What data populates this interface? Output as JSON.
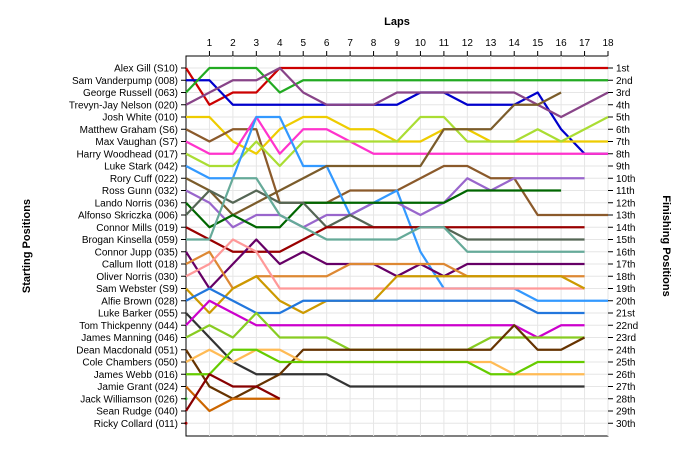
{
  "chart_data": {
    "type": "line",
    "xlabel": "Laps",
    "ylabel_left": "Starting Positions",
    "ylabel_right": "Finishing Positions",
    "laps": [
      1,
      2,
      3,
      4,
      5,
      6,
      7,
      8,
      9,
      10,
      11,
      12,
      13,
      14,
      15,
      16,
      17,
      18
    ],
    "finishing_labels": [
      "1st",
      "2nd",
      "3rd",
      "4th",
      "5th",
      "6th",
      "7th",
      "8th",
      "9th",
      "10th",
      "11th",
      "12th",
      "13th",
      "14th",
      "15th",
      "16th",
      "17th",
      "18th",
      "19th",
      "20th",
      "21st",
      "22nd",
      "23rd",
      "24th",
      "25th",
      "26th",
      "27th",
      "28th",
      "29th",
      "30th"
    ],
    "drivers": [
      "Alex Gill (S10)",
      "Sam Vanderpump (008)",
      "George Russell (063)",
      "Trevyn-Jay Nelson (020)",
      "Josh White (010)",
      "Matthew Graham (S6)",
      "Max Vaughan (S7)",
      "Harry Woodhead (017)",
      "Luke Stark (042)",
      "Rory Cuff (022)",
      "Ross Gunn (032)",
      "Lando Norris (036)",
      "Alfonso Skriczka (006)",
      "Connor Mills (019)",
      "Brogan Kinsella (059)",
      "Connor Jupp (035)",
      "Callum Ilott (018)",
      "Oliver Norris (030)",
      "Sam Webster (S9)",
      "Alfie Brown (028)",
      "Luke Barker (055)",
      "Tom Thickpenny (044)",
      "James Manning (046)",
      "Dean Macdonald (051)",
      "Cole Chambers (050)",
      "James Webb (016)",
      "Jamie Grant (024)",
      "Jack Williamson (026)",
      "Sean Rudge (040)",
      "Ricky Collard (011)"
    ],
    "series": [
      {
        "color": "#cc0000",
        "positions": [
          1,
          4,
          3,
          3,
          1,
          1,
          1,
          1,
          1,
          1,
          1,
          1,
          1,
          1,
          1,
          1,
          1,
          1,
          1
        ]
      },
      {
        "color": "#0000cc",
        "positions": [
          2,
          2,
          4,
          4,
          4,
          4,
          4,
          4,
          4,
          4,
          3,
          3,
          4,
          4,
          4,
          3,
          6,
          8,
          8
        ]
      },
      {
        "color": "#22aa22",
        "positions": [
          3,
          1,
          1,
          1,
          3,
          2,
          2,
          2,
          2,
          2,
          2,
          2,
          2,
          2,
          2,
          2,
          2,
          2,
          2
        ]
      },
      {
        "color": "#884488",
        "positions": [
          4,
          3,
          2,
          2,
          1,
          3,
          4,
          4,
          4,
          3,
          3,
          3,
          3,
          3,
          3,
          4,
          5,
          4,
          3
        ]
      },
      {
        "color": "#eecc00",
        "positions": [
          5,
          5,
          7,
          8,
          6,
          5,
          5,
          6,
          6,
          7,
          7,
          6,
          6,
          7,
          7,
          7,
          7,
          7,
          7
        ]
      },
      {
        "color": "#8b5a2b",
        "positions": [
          6,
          7,
          6,
          6,
          12,
          12,
          12,
          11,
          11,
          11,
          10,
          9,
          9,
          10,
          10,
          13,
          13,
          13,
          13
        ]
      },
      {
        "color": "#ff33cc",
        "positions": [
          7,
          8,
          8,
          5,
          8,
          6,
          6,
          7,
          8,
          8,
          8,
          8,
          8,
          8,
          8,
          8,
          8,
          8,
          8
        ]
      },
      {
        "color": "#aadd33",
        "positions": [
          8,
          9,
          9,
          7,
          9,
          7,
          7,
          7,
          7,
          7,
          5,
          5,
          7,
          7,
          7,
          6,
          7,
          6,
          5
        ]
      },
      {
        "color": "#3399ff",
        "positions": [
          9,
          10,
          10,
          5,
          5,
          9,
          9,
          13,
          12,
          11,
          16,
          19,
          19,
          19,
          19,
          20,
          20,
          20,
          20
        ]
      },
      {
        "color": "#7b5c2b",
        "positions": [
          10,
          11,
          13,
          12,
          11,
          10,
          9,
          9,
          9,
          9,
          9,
          6,
          6,
          6,
          4,
          4,
          3
        ]
      },
      {
        "color": "#9966cc",
        "positions": [
          11,
          12,
          14,
          13,
          13,
          14,
          13,
          13,
          12,
          12,
          13,
          12,
          10,
          11,
          10,
          10,
          10,
          10
        ]
      },
      {
        "color": "#006600",
        "positions": [
          12,
          14,
          13,
          14,
          14,
          12,
          12,
          12,
          12,
          12,
          12,
          12,
          11,
          11,
          11,
          11,
          11
        ]
      },
      {
        "color": "#556655",
        "positions": [
          13,
          11,
          12,
          11,
          12,
          12,
          14,
          13,
          14,
          14,
          14,
          14,
          15,
          15,
          15,
          15,
          15,
          15
        ]
      },
      {
        "color": "#990000",
        "positions": [
          14,
          15,
          16,
          16,
          16,
          15,
          14,
          14,
          14,
          14,
          14,
          14,
          14,
          14,
          14,
          14,
          14,
          14
        ]
      },
      {
        "color": "#66aa99",
        "positions": [
          15,
          15,
          10,
          10,
          13,
          14,
          15,
          15,
          15,
          15,
          14,
          14,
          16,
          16,
          16,
          16,
          16,
          16
        ]
      },
      {
        "color": "#660066",
        "positions": [
          16,
          19,
          17,
          15,
          17,
          16,
          17,
          17,
          17,
          18,
          17,
          18,
          17,
          17,
          17,
          17,
          17,
          17
        ]
      },
      {
        "color": "#dd8833",
        "positions": [
          17,
          16,
          19,
          18,
          18,
          18,
          18,
          17,
          17,
          17,
          17,
          17,
          18,
          18,
          18,
          18,
          18,
          18
        ]
      },
      {
        "color": "#ff9999",
        "positions": [
          18,
          17,
          15,
          16,
          19,
          19,
          19,
          19,
          19,
          19,
          19,
          19,
          19,
          19,
          19,
          19,
          19,
          19
        ]
      },
      {
        "color": "#cc9900",
        "positions": [
          19,
          21,
          19,
          18,
          20,
          21,
          20,
          20,
          20,
          18,
          18,
          18,
          18,
          18,
          18,
          18,
          18,
          19
        ]
      },
      {
        "color": "#2277dd",
        "positions": [
          20,
          19,
          20,
          21,
          21,
          20,
          20,
          20,
          20,
          20,
          20,
          20,
          20,
          20,
          20,
          21,
          21,
          21
        ]
      },
      {
        "color": "#333333",
        "positions": [
          21,
          23,
          25,
          26,
          26,
          26,
          26,
          27,
          27,
          27,
          27,
          27,
          27,
          27,
          27,
          27,
          27,
          27
        ]
      },
      {
        "color": "#cc00cc",
        "positions": [
          22,
          20,
          21,
          22,
          22,
          22,
          22,
          22,
          22,
          22,
          22,
          22,
          22,
          22,
          22,
          23,
          22,
          22
        ]
      },
      {
        "color": "#88cc22",
        "positions": [
          23,
          22,
          23,
          21,
          23,
          23,
          23,
          24,
          24,
          24,
          24,
          24,
          24,
          23,
          23,
          23,
          23,
          23
        ]
      },
      {
        "color": "#663300",
        "positions": [
          24,
          27,
          28,
          27,
          26,
          24,
          24,
          24,
          24,
          24,
          24,
          24,
          24,
          24,
          22,
          24,
          24,
          23
        ]
      },
      {
        "color": "#ffbb55",
        "positions": [
          25,
          24,
          25,
          24,
          24,
          25,
          25,
          25,
          25,
          25,
          25,
          25,
          25,
          25,
          26,
          26,
          26,
          26
        ]
      },
      {
        "color": "#66cc00",
        "positions": [
          26,
          26,
          24,
          24,
          25,
          25,
          25,
          25,
          25,
          25,
          25,
          25,
          25,
          26,
          26,
          25,
          25,
          25
        ]
      },
      {
        "color": "#cc6600",
        "positions": [
          27,
          29,
          28,
          28,
          28
        ]
      },
      {
        "color": "#33aa33",
        "positions": [
          28
        ]
      },
      {
        "color": "#880000",
        "positions": [
          29,
          26,
          27,
          27,
          28
        ]
      },
      {
        "color": "#aa0000",
        "positions": [
          30
        ]
      }
    ]
  }
}
